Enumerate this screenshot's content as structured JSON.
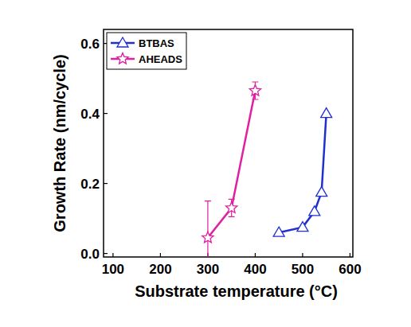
{
  "chart_data": {
    "type": "line",
    "x_label": "Substrate temperature (°C)",
    "y_label": "Growth Rate (nm/cycle)",
    "xlim": [
      80,
      606
    ],
    "xticks": [
      100,
      200,
      300,
      400,
      500,
      600
    ],
    "ylim": [
      -0.01,
      0.64
    ],
    "yticks": [
      {
        "value": 0,
        "label": "0.0"
      },
      {
        "value": 0.2,
        "label": "0.2"
      },
      {
        "value": 0.4,
        "label": "0.4"
      },
      {
        "value": 0.6,
        "label": "0.6"
      }
    ],
    "legend": "upper left",
    "grid": false,
    "series": [
      {
        "name": "BTBAS",
        "color": "#1f2fd0",
        "marker": "triangle",
        "line_style": "solid",
        "x": [
          450,
          500,
          525,
          540,
          550
        ],
        "values": [
          0.06,
          0.075,
          0.12,
          0.175,
          0.4
        ]
      },
      {
        "name": "AHEADS",
        "color": "#e020a0",
        "marker": "star",
        "line_style": "solid",
        "x": [
          300,
          350,
          400
        ],
        "values": [
          0.045,
          0.13,
          0.465
        ],
        "errors": [
          0.105,
          0.025,
          0.025
        ]
      }
    ]
  }
}
